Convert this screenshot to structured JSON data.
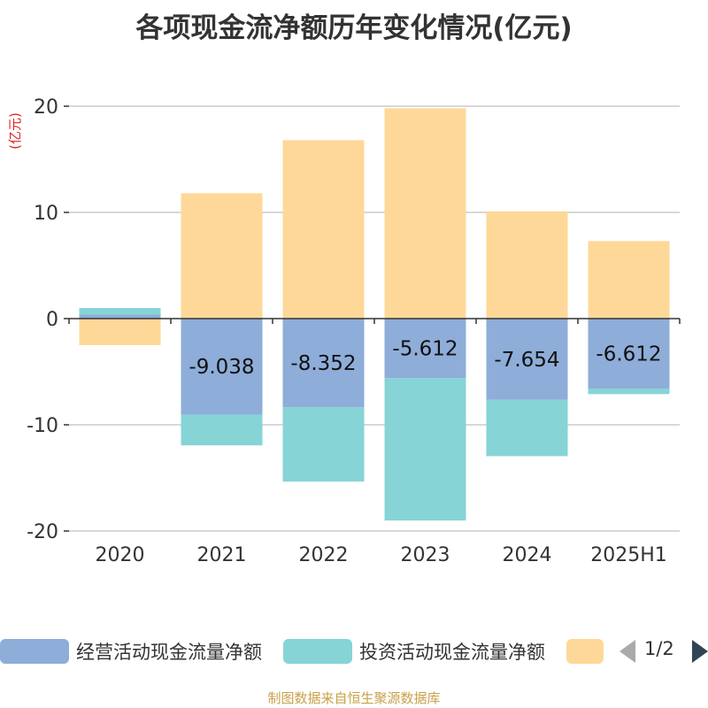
{
  "chart_data": {
    "type": "bar",
    "stacked": true,
    "title": "各项现金流净额历年变化情况(亿元)",
    "ylabel": "(亿元)",
    "categories": [
      "2020",
      "2021",
      "2022",
      "2023",
      "2024",
      "2025H1"
    ],
    "ylim": [
      -20,
      20
    ],
    "yticks": [
      "20",
      "10",
      "0",
      "-10",
      "-20"
    ],
    "grid": true,
    "series": [
      {
        "name": "经营活动现金流量净额",
        "color": "#8eadd9",
        "values": [
          0.4,
          -9.038,
          -8.352,
          -5.612,
          -7.654,
          -6.612
        ],
        "labels": [
          "",
          "-9.038",
          "-8.352",
          "-5.612",
          "-7.654",
          "-6.612"
        ]
      },
      {
        "name": "投资活动现金流量净额",
        "color": "#86d4d6",
        "values": [
          0.6,
          -2.9,
          -7.0,
          -13.4,
          -5.3,
          -0.5
        ]
      },
      {
        "name": "",
        "color": "#fed898",
        "values": [
          -2.5,
          11.8,
          16.8,
          19.8,
          10.1,
          7.3
        ]
      }
    ],
    "legend_position": "bottom"
  },
  "legend": {
    "items": [
      {
        "label": "经营活动现金流量净额",
        "color": "#8eadd9"
      },
      {
        "label": "投资活动现金流量净额",
        "color": "#86d4d6"
      },
      {
        "label": "",
        "color": "#fed898"
      }
    ],
    "page": "1/2"
  },
  "source": "制图数据来自恒生聚源数据库"
}
